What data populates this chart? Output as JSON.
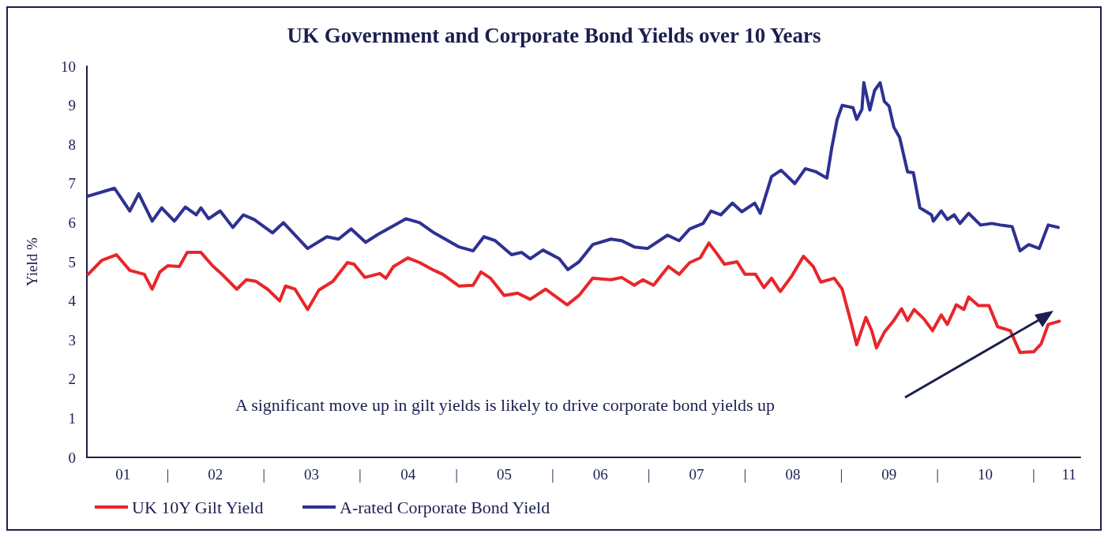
{
  "chart_data": {
    "type": "line",
    "title": "UK Government and Corporate Bond Yields over 10 Years",
    "ylabel": "Yield %",
    "annotations": [
      "A significant move up in gilt yields is likely to drive corporate bond yields up"
    ],
    "xlim": [
      "2001-02-28",
      "2011-06-27"
    ],
    "xticks": [
      {
        "value": "2001-07-15",
        "label": "01"
      },
      {
        "value": "2002-01-01",
        "label": "|"
      },
      {
        "value": "2002-07-01",
        "label": "02"
      },
      {
        "value": "2003-01-01",
        "label": "|"
      },
      {
        "value": "2003-07-01",
        "label": "03"
      },
      {
        "value": "2004-01-01",
        "label": "|"
      },
      {
        "value": "2004-07-01",
        "label": "04"
      },
      {
        "value": "2005-01-01",
        "label": "|"
      },
      {
        "value": "2005-07-01",
        "label": "05"
      },
      {
        "value": "2006-01-01",
        "label": "|"
      },
      {
        "value": "2006-07-01",
        "label": "06"
      },
      {
        "value": "2007-01-01",
        "label": "|"
      },
      {
        "value": "2007-07-01",
        "label": "07"
      },
      {
        "value": "2008-01-01",
        "label": "|"
      },
      {
        "value": "2008-07-01",
        "label": "08"
      },
      {
        "value": "2009-01-01",
        "label": "|"
      },
      {
        "value": "2009-07-01",
        "label": "09"
      },
      {
        "value": "2010-01-01",
        "label": "|"
      },
      {
        "value": "2010-07-01",
        "label": "10"
      },
      {
        "value": "2011-01-01",
        "label": "|"
      },
      {
        "value": "2011-05-15",
        "label": "11"
      }
    ],
    "ylim": [
      0,
      10
    ],
    "yticks": [
      0,
      1,
      2,
      3,
      4,
      5,
      6,
      7,
      8,
      9,
      10
    ],
    "grid": false,
    "legend": "bottom left",
    "marker": "none",
    "line_style": "solid",
    "series": [
      {
        "name": "UK 10Y Gilt Yield",
        "color": "#e8262a",
        "x": [
          "2001-03-05",
          "2001-04-26",
          "2001-06-20",
          "2001-08-10",
          "2001-10-04",
          "2001-11-03",
          "2001-12-02",
          "2002-01-01",
          "2002-02-14",
          "2002-03-16",
          "2002-05-07",
          "2002-06-20",
          "2002-07-26",
          "2002-09-20",
          "2002-10-26",
          "2002-12-02",
          "2003-01-15",
          "2003-03-02",
          "2003-03-24",
          "2003-04-29",
          "2003-06-16",
          "2003-07-29",
          "2003-09-20",
          "2003-11-14",
          "2003-12-09",
          "2004-01-19",
          "2004-03-16",
          "2004-04-08",
          "2004-05-07",
          "2004-07-01",
          "2004-08-14",
          "2004-10-08",
          "2004-11-10",
          "2005-01-11",
          "2005-03-05",
          "2005-04-04",
          "2005-05-10",
          "2005-07-01",
          "2005-08-21",
          "2005-10-08",
          "2005-12-05",
          "2006-01-15",
          "2006-02-25",
          "2006-04-11",
          "2006-06-02",
          "2006-08-10",
          "2006-09-20",
          "2006-11-07",
          "2006-12-09",
          "2007-01-19",
          "2007-03-16",
          "2007-04-26",
          "2007-06-05",
          "2007-07-15",
          "2007-08-17",
          "2007-09-13",
          "2007-10-15",
          "2007-12-02",
          "2008-01-01",
          "2008-02-10",
          "2008-03-13",
          "2008-04-11",
          "2008-05-14",
          "2008-06-27",
          "2008-08-10",
          "2008-09-16",
          "2008-10-15",
          "2008-12-05",
          "2009-01-04",
          "2009-02-07",
          "2009-02-28",
          "2009-04-04",
          "2009-04-26",
          "2009-05-14",
          "2009-06-13",
          "2009-07-19",
          "2009-08-17",
          "2009-09-09",
          "2009-10-04",
          "2009-11-10",
          "2009-12-13",
          "2010-01-15",
          "2010-02-07",
          "2010-03-13",
          "2010-04-11",
          "2010-04-29",
          "2010-06-05",
          "2010-07-15",
          "2010-08-17",
          "2010-10-04",
          "2010-11-10",
          "2011-01-01",
          "2011-01-29",
          "2011-02-25",
          "2011-04-08"
        ],
        "values": [
          4.68,
          5.04,
          5.18,
          4.78,
          4.68,
          4.3,
          4.74,
          4.9,
          4.88,
          5.24,
          5.24,
          4.9,
          4.68,
          4.3,
          4.54,
          4.5,
          4.3,
          4.0,
          4.38,
          4.3,
          3.78,
          4.28,
          4.5,
          4.98,
          4.94,
          4.6,
          4.7,
          4.58,
          4.88,
          5.1,
          4.98,
          4.78,
          4.68,
          4.38,
          4.4,
          4.74,
          4.58,
          4.14,
          4.2,
          4.04,
          4.3,
          4.1,
          3.9,
          4.14,
          4.58,
          4.54,
          4.6,
          4.4,
          4.54,
          4.4,
          4.88,
          4.68,
          4.98,
          5.1,
          5.48,
          5.24,
          4.94,
          5.0,
          4.68,
          4.68,
          4.34,
          4.58,
          4.24,
          4.64,
          5.14,
          4.88,
          4.48,
          4.58,
          4.3,
          3.44,
          2.88,
          3.58,
          3.24,
          2.8,
          3.2,
          3.5,
          3.8,
          3.5,
          3.78,
          3.54,
          3.24,
          3.64,
          3.4,
          3.9,
          3.78,
          4.1,
          3.88,
          3.88,
          3.34,
          3.24,
          2.68,
          2.7,
          2.9,
          3.4,
          3.48
        ]
      },
      {
        "name": "A-rated Corporate Bond Yield",
        "color": "#2e3192",
        "x": [
          "2001-03-05",
          "2001-06-13",
          "2001-08-10",
          "2001-09-13",
          "2001-11-03",
          "2001-12-09",
          "2002-01-26",
          "2002-03-09",
          "2002-04-19",
          "2002-05-07",
          "2002-06-05",
          "2002-07-19",
          "2002-09-05",
          "2002-10-15",
          "2002-11-25",
          "2003-02-03",
          "2003-03-16",
          "2003-06-16",
          "2003-08-28",
          "2003-10-11",
          "2003-11-28",
          "2004-01-22",
          "2004-03-09",
          "2004-06-23",
          "2004-08-14",
          "2004-10-08",
          "2005-01-11",
          "2005-03-05",
          "2005-04-15",
          "2005-05-28",
          "2005-07-29",
          "2005-09-05",
          "2005-10-08",
          "2005-11-25",
          "2006-01-26",
          "2006-02-28",
          "2006-04-11",
          "2006-06-02",
          "2006-08-10",
          "2006-09-20",
          "2006-11-07",
          "2006-12-27",
          "2007-03-13",
          "2007-04-26",
          "2007-06-05",
          "2007-07-26",
          "2007-08-25",
          "2007-10-01",
          "2007-11-14",
          "2007-12-20",
          "2008-02-07",
          "2008-02-28",
          "2008-04-11",
          "2008-05-17",
          "2008-07-08",
          "2008-08-17",
          "2008-09-27",
          "2008-11-07",
          "2008-11-25",
          "2008-12-16",
          "2009-01-04",
          "2009-02-14",
          "2009-02-28",
          "2009-03-20",
          "2009-03-27",
          "2009-04-19",
          "2009-05-07",
          "2009-05-28",
          "2009-06-13",
          "2009-07-01",
          "2009-07-19",
          "2009-08-10",
          "2009-09-09",
          "2009-10-01",
          "2009-10-26",
          "2009-12-09",
          "2009-12-16",
          "2010-01-15",
          "2010-02-07",
          "2010-03-05",
          "2010-03-27",
          "2010-04-29",
          "2010-06-13",
          "2010-07-26",
          "2010-08-28",
          "2010-10-11",
          "2010-11-10",
          "2010-12-13",
          "2011-01-22",
          "2011-02-25",
          "2011-04-04"
        ],
        "values": [
          6.68,
          6.88,
          6.3,
          6.74,
          6.04,
          6.38,
          6.04,
          6.4,
          6.2,
          6.38,
          6.1,
          6.3,
          5.88,
          6.2,
          6.08,
          5.74,
          6.0,
          5.34,
          5.64,
          5.58,
          5.84,
          5.5,
          5.7,
          6.1,
          6.0,
          5.74,
          5.38,
          5.28,
          5.64,
          5.54,
          5.18,
          5.24,
          5.08,
          5.3,
          5.08,
          4.8,
          5.0,
          5.44,
          5.58,
          5.54,
          5.38,
          5.34,
          5.68,
          5.54,
          5.84,
          5.98,
          6.3,
          6.2,
          6.5,
          6.28,
          6.5,
          6.24,
          7.18,
          7.34,
          7.0,
          7.38,
          7.3,
          7.14,
          7.9,
          8.64,
          9.0,
          8.94,
          8.64,
          8.9,
          9.58,
          8.88,
          9.38,
          9.58,
          9.1,
          8.98,
          8.44,
          8.18,
          7.3,
          7.28,
          6.38,
          6.2,
          6.04,
          6.3,
          6.08,
          6.2,
          5.98,
          6.24,
          5.94,
          5.98,
          5.94,
          5.9,
          5.28,
          5.44,
          5.34,
          5.94,
          5.88
        ]
      }
    ]
  }
}
